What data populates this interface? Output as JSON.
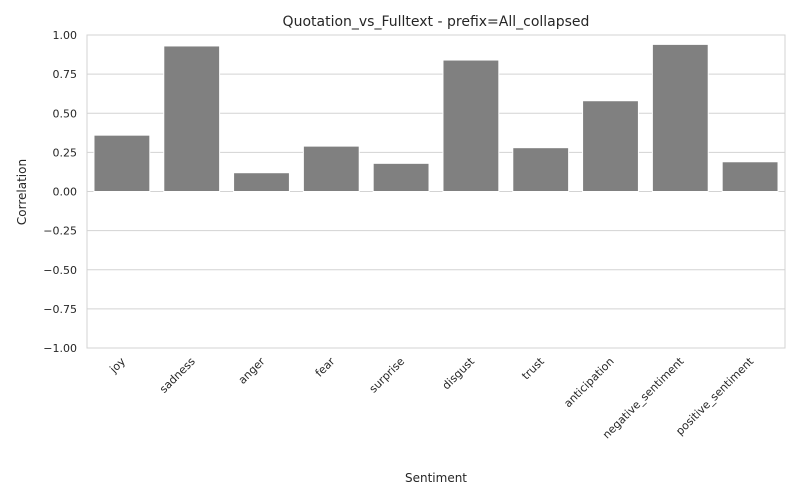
{
  "chart_data": {
    "type": "bar",
    "title": "Quotation_vs_Fulltext - prefix=All_collapsed",
    "xlabel": "Sentiment",
    "ylabel": "Correlation",
    "categories": [
      "joy",
      "sadness",
      "anger",
      "fear",
      "surprise",
      "disgust",
      "trust",
      "anticipation",
      "negative_sentiment",
      "positive_sentiment"
    ],
    "values": [
      0.36,
      0.93,
      0.12,
      0.29,
      0.18,
      0.84,
      0.28,
      0.58,
      0.94,
      0.19
    ],
    "ylim": [
      -1.0,
      1.0
    ],
    "yticks": [
      -1.0,
      -0.75,
      -0.5,
      -0.25,
      0.0,
      0.25,
      0.5,
      0.75,
      1.0
    ],
    "ytick_labels": [
      "−1.00",
      "−0.75",
      "−0.50",
      "−0.25",
      "0.00",
      "0.25",
      "0.50",
      "0.75",
      "1.00"
    ],
    "grid": true,
    "bar_color": "#808080",
    "grid_color": "#d3d3d3"
  }
}
